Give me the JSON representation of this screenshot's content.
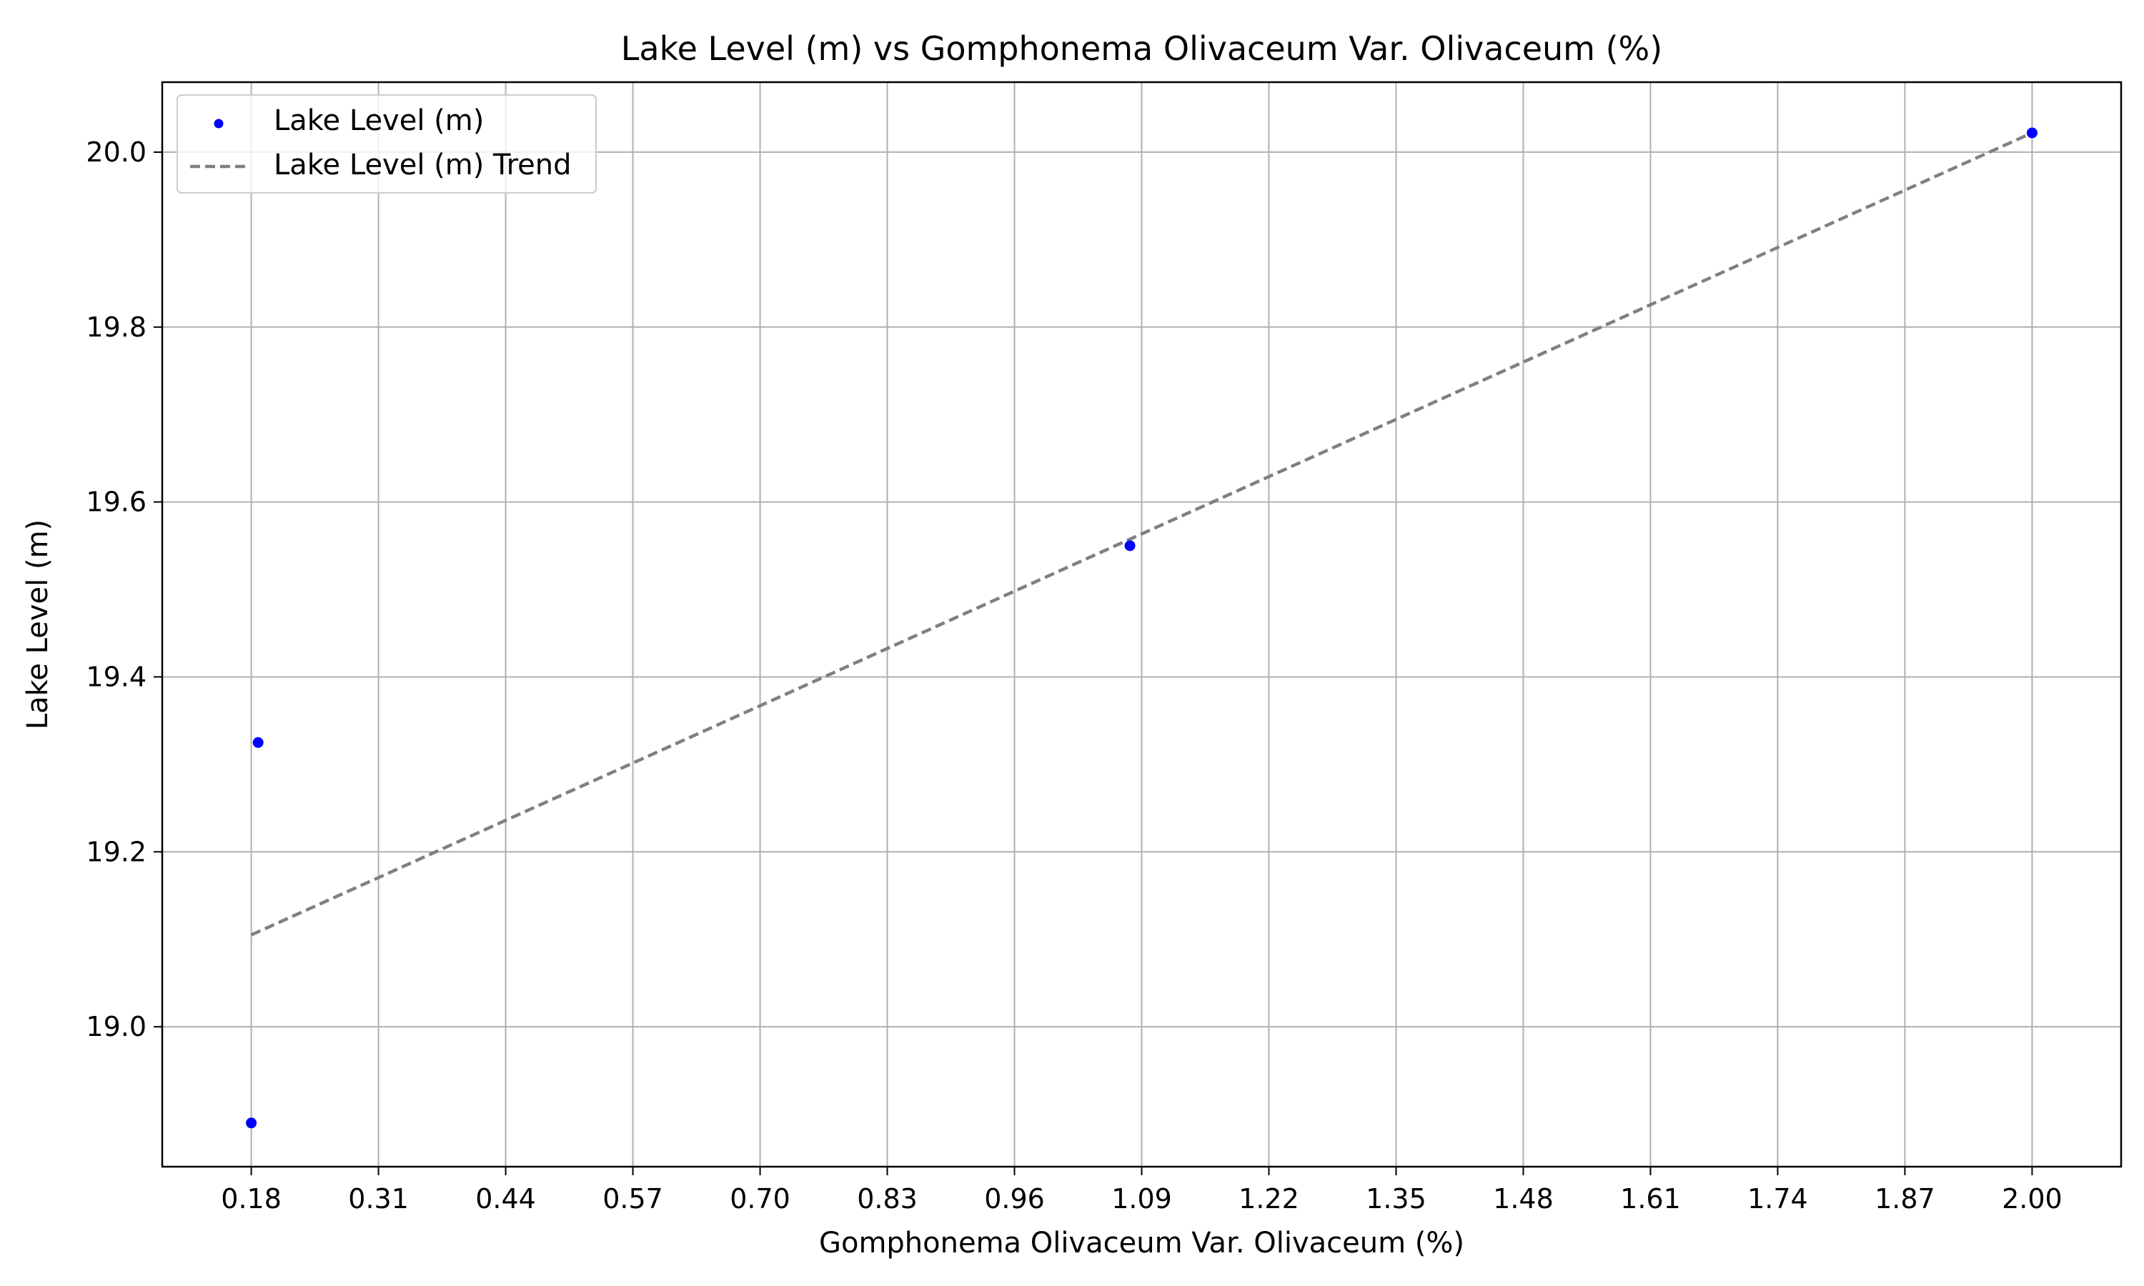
{
  "chart_data": {
    "type": "scatter",
    "title": "Lake Level (m) vs Gomphonema Olivaceum Var. Olivaceum (%)",
    "xlabel": "Gomphonema Olivaceum Var. Olivaceum (%)",
    "ylabel": "Lake Level (m)",
    "xlim": [
      0.089,
      2.091
    ],
    "ylim": [
      18.84,
      20.08
    ],
    "xticks": [
      "0.18",
      "0.31",
      "0.44",
      "0.57",
      "0.70",
      "0.83",
      "0.96",
      "1.09",
      "1.22",
      "1.35",
      "1.48",
      "1.61",
      "1.74",
      "1.87",
      "2.00"
    ],
    "yticks": [
      "19.0",
      "19.2",
      "19.4",
      "19.6",
      "19.8",
      "20.0"
    ],
    "grid": true,
    "legend_position": "top-left",
    "series": [
      {
        "name": "Lake Level (m)",
        "kind": "scatter",
        "color": "#0000ff",
        "points": [
          {
            "x": 0.18,
            "y": 18.89
          },
          {
            "x": 0.187,
            "y": 19.325
          },
          {
            "x": 1.078,
            "y": 19.55
          },
          {
            "x": 2.0,
            "y": 20.022
          }
        ]
      },
      {
        "name": "Lake Level (m) Trend",
        "kind": "line",
        "style": "dashed",
        "color": "#808080",
        "points": [
          {
            "x": 0.18,
            "y": 19.105
          },
          {
            "x": 2.0,
            "y": 20.022
          }
        ]
      }
    ]
  }
}
